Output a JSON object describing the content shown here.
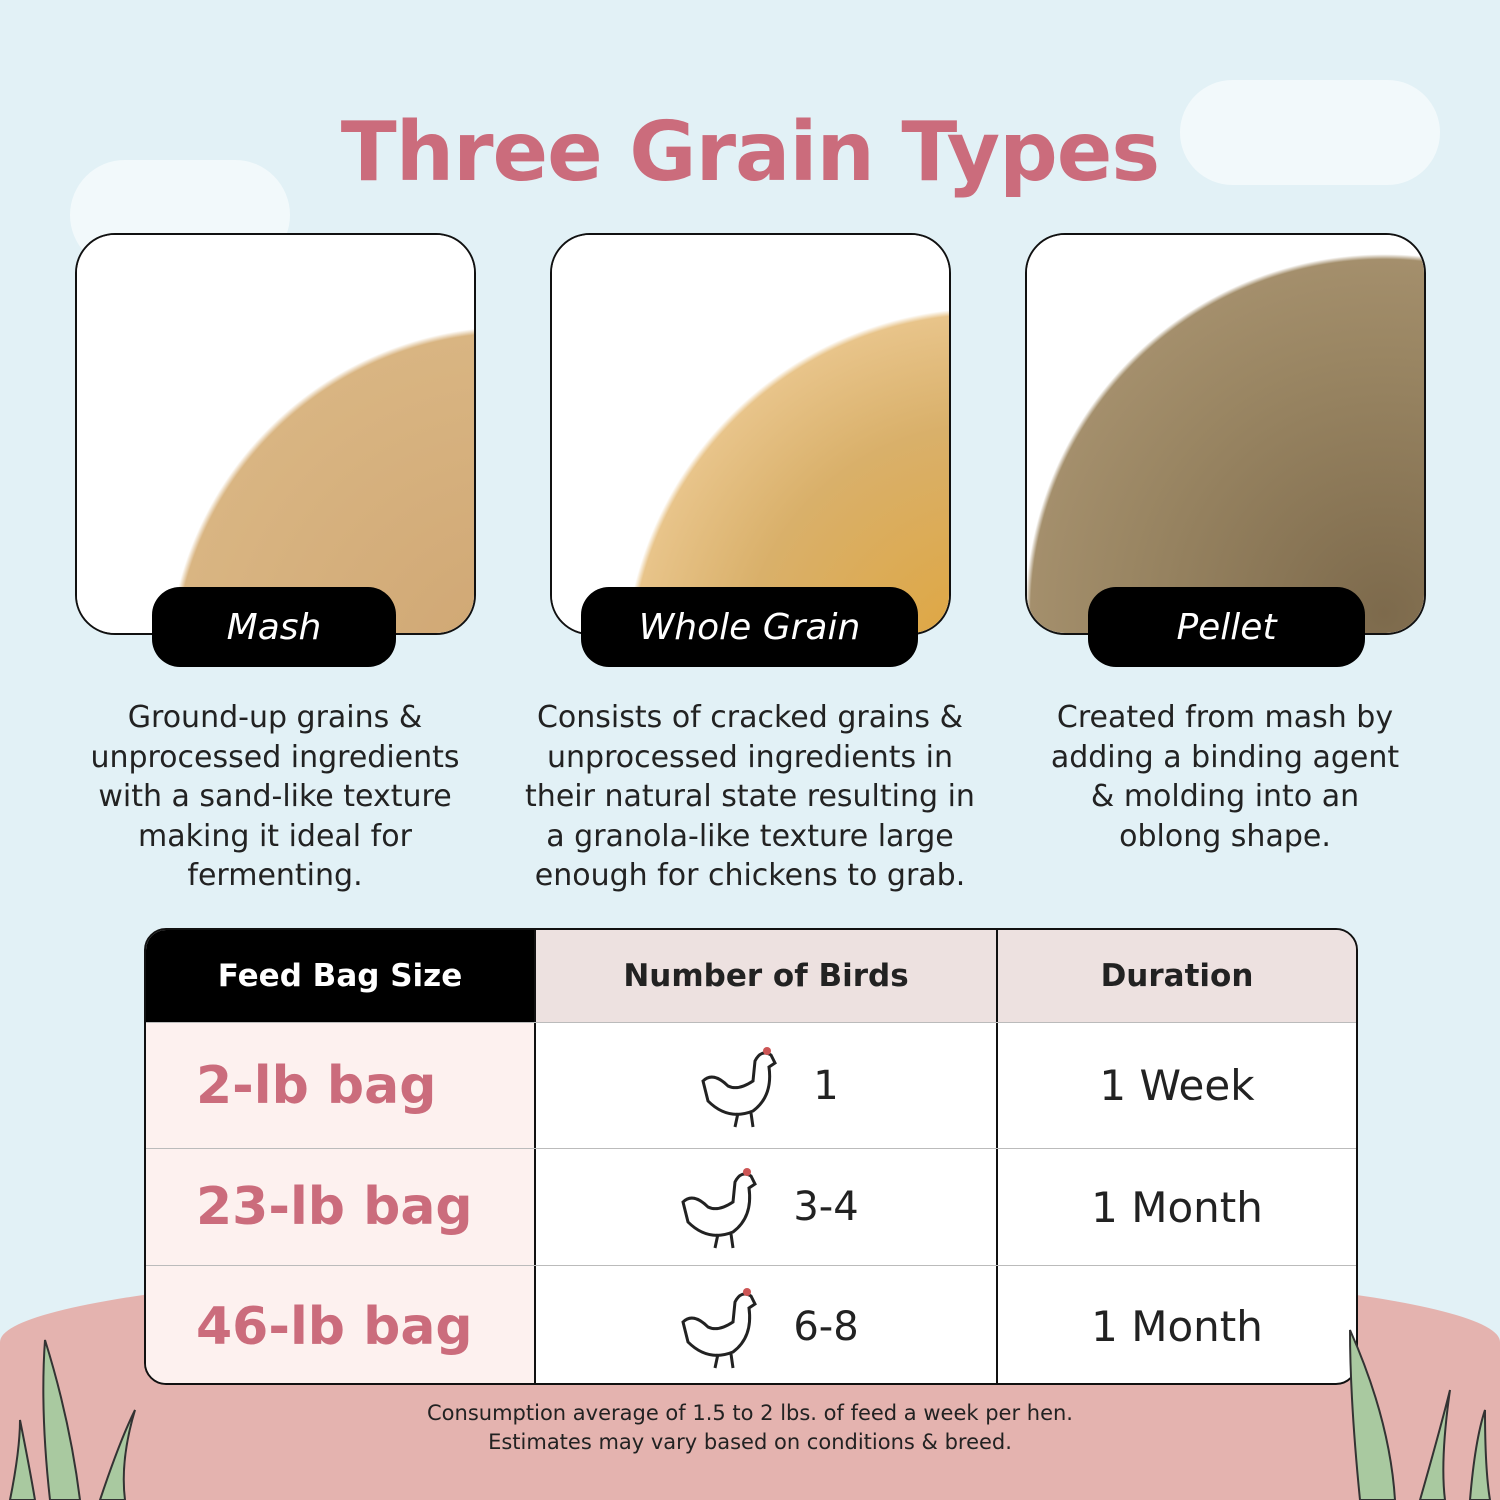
{
  "title": "Three Grain Types",
  "grains": [
    {
      "label": "Mash",
      "description": "Ground-up grains & unprocessed ingredients with a sand-like texture making it ideal for fermenting."
    },
    {
      "label": "Whole Grain",
      "description": "Consists of cracked grains & unprocessed ingredients in their natural state resulting in a granola-like texture large enough for chickens to grab."
    },
    {
      "label": "Pellet",
      "description": "Created from mash by adding a binding agent & molding into an oblong shape."
    }
  ],
  "table": {
    "headers": [
      "Feed Bag Size",
      "Number of Birds",
      "Duration"
    ],
    "rows": [
      {
        "size": "2-lb bag",
        "birds": "1",
        "duration": "1 Week"
      },
      {
        "size": "23-lb bag",
        "birds": "3-4",
        "duration": "1 Month"
      },
      {
        "size": "46-lb bag",
        "birds": "6-8",
        "duration": "1 Month"
      }
    ]
  },
  "footnote": [
    "Consumption average of 1.5 to 2 lbs. of feed a week per hen.",
    "Estimates may vary based on conditions & breed."
  ],
  "colors": {
    "background": "#e2f1f6",
    "title": "#cb6c7c",
    "ground": "#e4b3af",
    "header": "#ede1e0",
    "size_cell": "#fdf1ef"
  }
}
